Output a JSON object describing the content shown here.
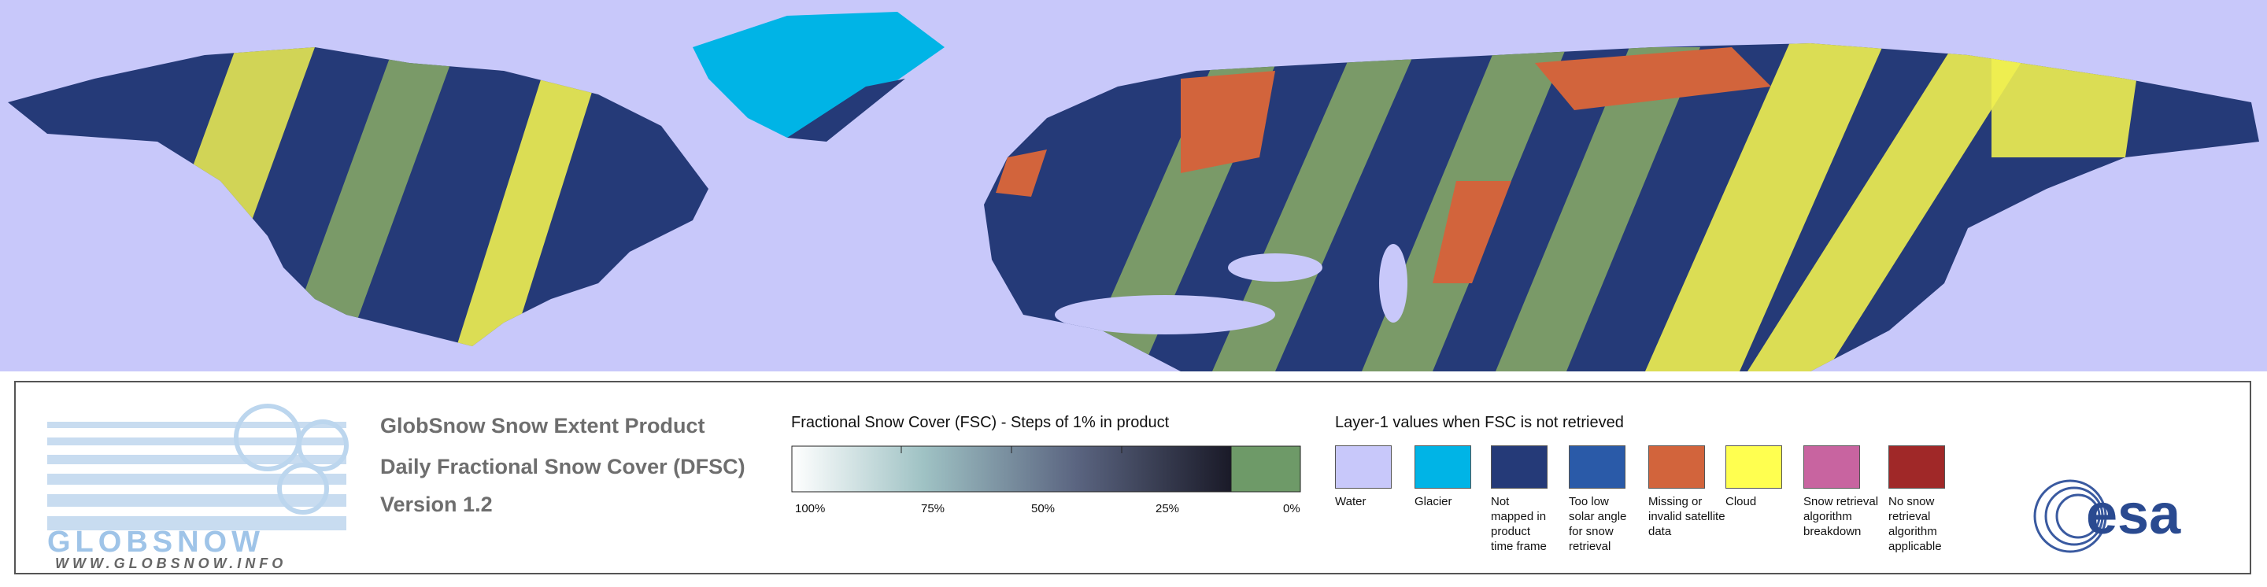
{
  "logo": {
    "wordmark": "GLOBSNOW",
    "url": "WWW.GLOBSNOW.INFO"
  },
  "header": {
    "title": "GlobSnow Snow Extent Product",
    "subtitle": "Daily Fractional Snow Cover (DFSC)",
    "version": "Version 1.2"
  },
  "fsc_legend": {
    "title": "Fractional Snow Cover (FSC) - Steps of 1% in product",
    "labels": [
      "100%",
      "75%",
      "50%",
      "25%",
      "0%"
    ]
  },
  "layer1_legend": {
    "title": "Layer-1 values when FSC is not retrieved",
    "items": [
      {
        "color": "#c8c8fa",
        "lines": [
          "Water"
        ]
      },
      {
        "color": "#00b4e6",
        "lines": [
          "Glacier"
        ]
      },
      {
        "color": "#253a78",
        "lines": [
          "Not",
          "mapped in",
          "product",
          "time frame"
        ]
      },
      {
        "color": "#2a5aa8",
        "lines": [
          "Too low",
          "solar angle",
          "for snow",
          "retrieval"
        ]
      },
      {
        "color": "#d2643c",
        "lines": [
          "Missing or",
          "invalid satellite",
          "data"
        ]
      },
      {
        "color": "#ffff50",
        "lines": [
          "Cloud"
        ]
      },
      {
        "color": "#c864a0",
        "lines": [
          "Snow retrieval",
          "algorithm",
          "breakdown"
        ]
      },
      {
        "color": "#a02828",
        "lines": [
          "No snow",
          "retrieval",
          "algorithm",
          "applicable"
        ]
      }
    ]
  },
  "agency": "esa"
}
